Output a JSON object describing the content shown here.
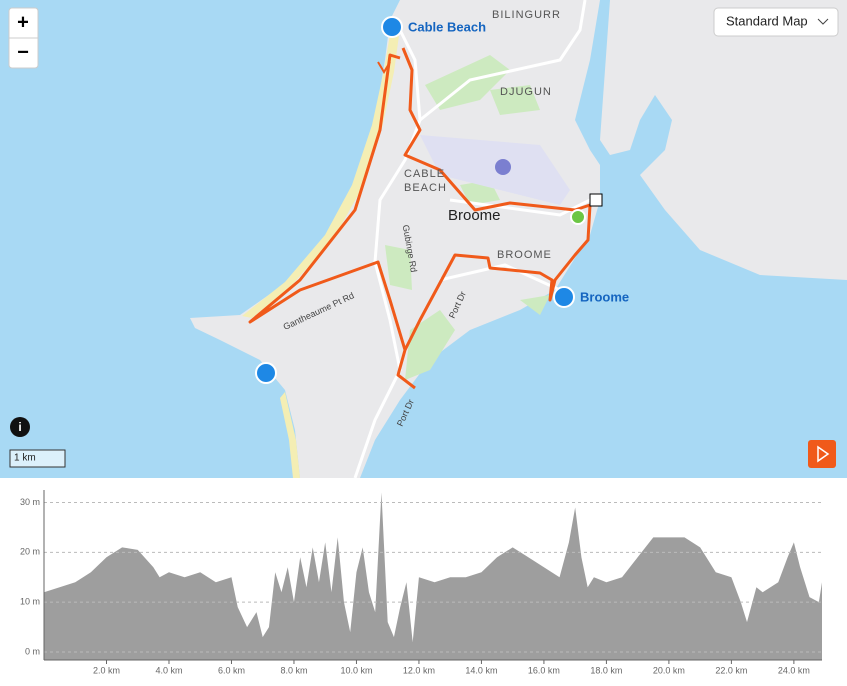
{
  "map": {
    "style_selector": "Standard Map",
    "zoom_in": "+",
    "zoom_out": "−",
    "info": "i",
    "scale": "1 km",
    "labels": {
      "bilingurr": "BILINGURR",
      "djugun": "DJUGUN",
      "cable_beach_1": "CABLE",
      "cable_beach_2": "BEACH",
      "broome_town": "Broome",
      "broome_suburb": "BROOME",
      "gubinge_rd": "Gubinge Rd",
      "gantheaume_rd": "Gantheaume Pt Rd",
      "port_dr_1": "Port Dr",
      "port_dr_2": "Port Dr"
    },
    "pois": [
      "Cable Beach",
      "Broome"
    ]
  },
  "chart_data": {
    "type": "area",
    "color": "#9e9e9e",
    "grid": true,
    "x": [
      0,
      0.5,
      1,
      1.5,
      2,
      2.5,
      3,
      3.5,
      3.7,
      4,
      4.5,
      5,
      5.5,
      6,
      6.2,
      6.5,
      6.8,
      7,
      7.2,
      7.4,
      7.6,
      7.8,
      8,
      8.2,
      8.4,
      8.6,
      8.8,
      9,
      9.2,
      9.4,
      9.6,
      9.8,
      10,
      10.2,
      10.4,
      10.6,
      10.8,
      11,
      11.2,
      11.4,
      11.6,
      11.8,
      12,
      12.5,
      13,
      13.5,
      14,
      14.5,
      15,
      15.5,
      16,
      16.5,
      16.8,
      17,
      17.2,
      17.4,
      17.6,
      18,
      18.5,
      19,
      19.5,
      20,
      20.5,
      21,
      21.5,
      22,
      22.3,
      22.5,
      22.8,
      23,
      23.5,
      23.8,
      24,
      24.2,
      24.5,
      24.8,
      24.9
    ],
    "values": [
      12,
      13,
      14,
      16,
      19,
      21,
      20.5,
      17,
      15,
      16,
      15,
      16,
      14,
      15,
      9,
      5,
      8,
      3,
      5,
      16,
      12,
      17,
      10,
      19,
      13,
      21,
      14,
      22,
      12,
      23,
      10,
      4,
      16,
      21,
      12,
      8,
      32,
      6,
      3,
      9,
      14,
      2,
      15,
      14,
      15,
      15,
      16,
      19,
      21,
      19,
      17,
      15,
      22,
      29,
      19,
      13,
      15,
      14,
      15,
      19,
      23,
      23,
      23,
      21,
      16,
      15,
      10,
      6,
      13,
      12,
      14,
      19,
      22,
      17,
      11,
      10,
      14
    ],
    "xlim": [
      0,
      24.9
    ],
    "ylim": [
      -1.6,
      32.5
    ],
    "xticks": [
      {
        "value": 2,
        "label": "2.0 km"
      },
      {
        "value": 4,
        "label": "4.0 km"
      },
      {
        "value": 6,
        "label": "6.0 km"
      },
      {
        "value": 8,
        "label": "8.0 km"
      },
      {
        "value": 10,
        "label": "10.0 km"
      },
      {
        "value": 12,
        "label": "12.0 km"
      },
      {
        "value": 14,
        "label": "14.0 km"
      },
      {
        "value": 16,
        "label": "16.0 km"
      },
      {
        "value": 18,
        "label": "18.0 km"
      },
      {
        "value": 20,
        "label": "20.0 km"
      },
      {
        "value": 22,
        "label": "22.0 km"
      },
      {
        "value": 24,
        "label": "24.0 km"
      }
    ],
    "yticks": [
      {
        "value": 0,
        "label": "0 m"
      },
      {
        "value": 10,
        "label": "10 m"
      },
      {
        "value": 20,
        "label": "20 m"
      },
      {
        "value": 30,
        "label": "30 m"
      }
    ]
  }
}
